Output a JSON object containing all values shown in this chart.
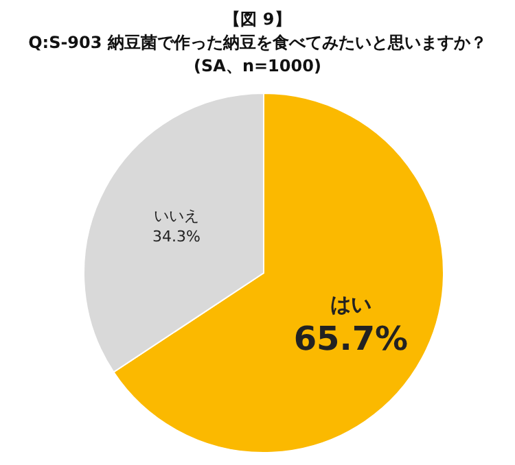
{
  "chart_data": {
    "type": "pie",
    "title": "【図 9】\nQ:S-903 納豆菌で作った納豆を食べてみたいと思いますか？\n(SA、n=1000)",
    "categories": [
      "はい",
      "いいえ"
    ],
    "values": [
      65.7,
      34.3
    ],
    "colors": [
      "#fbb900",
      "#d9d9d9"
    ],
    "value_labels": [
      "65.7%",
      "34.3%"
    ],
    "legend": false
  }
}
